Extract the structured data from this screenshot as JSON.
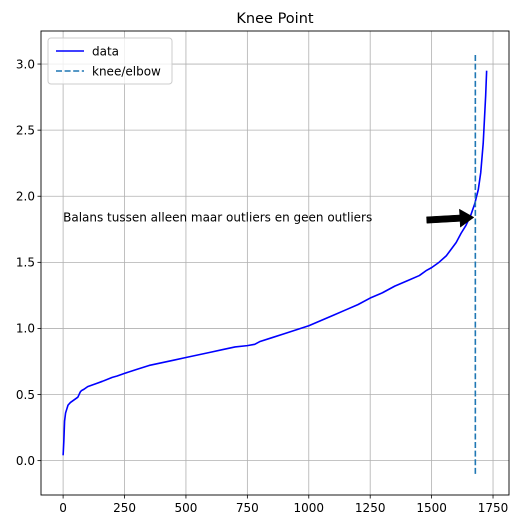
{
  "chart_data": {
    "type": "line",
    "title": "Knee Point",
    "xlabel": "",
    "ylabel": "",
    "xlim": [
      -90,
      1815
    ],
    "ylim": [
      -0.26,
      3.25
    ],
    "xticks": [
      0,
      250,
      500,
      750,
      1000,
      1250,
      1500,
      1750
    ],
    "yticks": [
      0.0,
      0.5,
      1.0,
      1.5,
      2.0,
      2.5,
      3.0
    ],
    "xtick_labels": [
      "0",
      "250",
      "500",
      "750",
      "1000",
      "1250",
      "1500",
      "1750"
    ],
    "ytick_labels": [
      "0.0",
      "0.5",
      "1.0",
      "1.5",
      "2.0",
      "2.5",
      "3.0"
    ],
    "grid": true,
    "legend_position": "top-left",
    "series": [
      {
        "name": "data",
        "style": "solid",
        "color": "#0000ff",
        "x": [
          0,
          3,
          6,
          10,
          15,
          20,
          30,
          45,
          60,
          70,
          75,
          85,
          100,
          130,
          160,
          200,
          220,
          250,
          300,
          350,
          400,
          450,
          500,
          550,
          600,
          650,
          700,
          750,
          780,
          800,
          850,
          900,
          950,
          1000,
          1050,
          1100,
          1150,
          1200,
          1250,
          1300,
          1350,
          1400,
          1450,
          1480,
          1500,
          1530,
          1560,
          1580,
          1600,
          1620,
          1640,
          1660,
          1675,
          1690,
          1700,
          1710,
          1715,
          1720,
          1724
        ],
        "y": [
          0.04,
          0.15,
          0.3,
          0.36,
          0.39,
          0.42,
          0.44,
          0.46,
          0.48,
          0.52,
          0.53,
          0.54,
          0.56,
          0.58,
          0.6,
          0.63,
          0.64,
          0.66,
          0.69,
          0.72,
          0.74,
          0.76,
          0.78,
          0.8,
          0.82,
          0.84,
          0.86,
          0.87,
          0.88,
          0.9,
          0.93,
          0.96,
          0.99,
          1.02,
          1.06,
          1.1,
          1.14,
          1.18,
          1.23,
          1.27,
          1.32,
          1.36,
          1.4,
          1.44,
          1.46,
          1.5,
          1.55,
          1.6,
          1.65,
          1.72,
          1.78,
          1.86,
          1.94,
          2.05,
          2.18,
          2.4,
          2.58,
          2.76,
          2.95
        ]
      },
      {
        "name": "knee/elbow",
        "style": "dashed",
        "color": "#1f77b4",
        "x": [
          1678,
          1678
        ],
        "y": [
          -0.1,
          3.08
        ]
      }
    ],
    "annotations": [
      {
        "text": "Balans tussen alleen maar outliers en geen outliers",
        "text_x": 0,
        "text_y": 1.84,
        "arrow_from_x": 1480,
        "arrow_from_y": 1.82,
        "arrow_to_x": 1672,
        "arrow_to_y": 1.84
      }
    ]
  }
}
